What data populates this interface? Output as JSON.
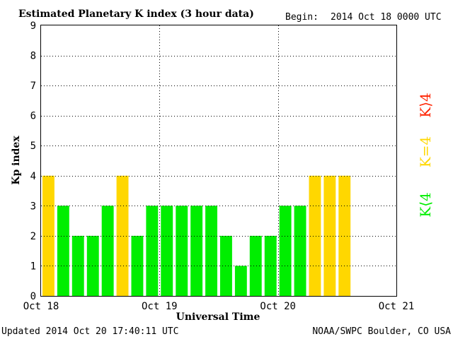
{
  "header": {
    "title": "Estimated Planetary K index (3 hour data)",
    "begin_label": "Begin:",
    "begin_value": "2014 Oct 18 0000 UTC"
  },
  "footer": {
    "updated": "Updated 2014 Oct 20 17:40:11 UTC",
    "source": "NOAA/SWPC Boulder, CO USA"
  },
  "legend": {
    "above": "K⟩4",
    "equal": "K=4",
    "below": "K⟨4"
  },
  "colors": {
    "below": "#00ee00",
    "equal": "#ffd700",
    "above": "#ff2200",
    "grid": "#000000"
  },
  "chart_data": {
    "type": "bar",
    "xlabel": "Universal Time",
    "ylabel": "Kp index",
    "ylim": [
      0,
      9
    ],
    "yticks": [
      "0",
      "1",
      "2",
      "3",
      "4",
      "5",
      "6",
      "7",
      "8",
      "9"
    ],
    "xticks": [
      "Oct 18",
      "Oct 19",
      "Oct 20",
      "Oct 21"
    ],
    "bins_per_day": 8,
    "total_bins": 24,
    "grid": true,
    "values": [
      4,
      3,
      2,
      2,
      3,
      4,
      2,
      3,
      3,
      3,
      3,
      3,
      2,
      1,
      2,
      2,
      3,
      3,
      4,
      4,
      4
    ]
  }
}
